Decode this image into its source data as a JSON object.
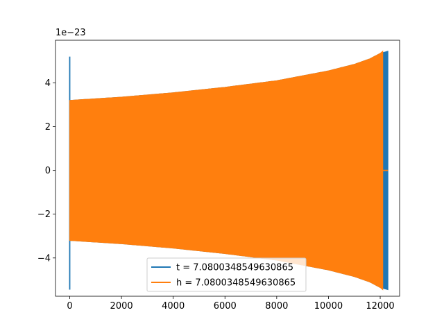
{
  "chart_data": {
    "type": "line",
    "title": "",
    "xlabel": "",
    "ylabel": "",
    "y_offset_label": "1e−23",
    "xlim": [
      -550,
      12750
    ],
    "ylim": [
      -5.75,
      5.95
    ],
    "xticks": [
      0,
      2000,
      4000,
      6000,
      8000,
      10000,
      12000
    ],
    "xtick_labels": [
      "0",
      "2000",
      "4000",
      "6000",
      "8000",
      "10000",
      "12000"
    ],
    "yticks": [
      -4,
      -2,
      0,
      2,
      4
    ],
    "ytick_labels": [
      "−4",
      "−2",
      "0",
      "2",
      "4"
    ],
    "grid": false,
    "legend_position": "lower center",
    "series": [
      {
        "name": "t = 7.0800348549630865",
        "color": "#1f77b4",
        "x_start": 0,
        "x_end": 12300,
        "initial_spike": [
          5.2,
          -5.45
        ],
        "envelope_x": [
          0,
          2000,
          4000,
          6000,
          8000,
          10000,
          11000,
          11600,
          12000,
          12300
        ],
        "envelope_amplitude": [
          3.2,
          3.35,
          3.55,
          3.8,
          4.1,
          4.55,
          4.85,
          5.1,
          5.35,
          5.45
        ]
      },
      {
        "name": "h = 7.0800348549630865",
        "color": "#ff7f0e",
        "x_start": 0,
        "x_end": 12100,
        "tail_end": 12300,
        "envelope_x": [
          0,
          2000,
          4000,
          6000,
          8000,
          10000,
          11000,
          11600,
          12000,
          12100
        ],
        "envelope_amplitude": [
          3.2,
          3.35,
          3.55,
          3.8,
          4.1,
          4.55,
          4.85,
          5.1,
          5.35,
          5.45
        ]
      }
    ]
  }
}
